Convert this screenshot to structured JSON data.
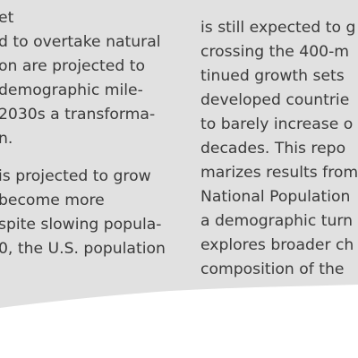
{
  "page": {
    "background": "#ffffff",
    "paper_color": "#e1e1e1",
    "text_color": "#3a3a3a"
  },
  "left_column": {
    "paragraph_1": [
      "et",
      "d to overtake natural",
      "on are projected to",
      "demographic mile-",
      "2030s a transforma-",
      "n."
    ],
    "paragraph_2": [
      " is projected to grow",
      " become more",
      "spite slowing popula-",
      "0, the U.S. population"
    ]
  },
  "right_column": {
    "lines": [
      "is still expected to g",
      "crossing the 400-m",
      "tinued growth sets",
      "developed countrie",
      "to barely increase o",
      "decades. This repo",
      "marizes results from",
      "National Population",
      "a demographic turn",
      "explores broader ch",
      "composition of the"
    ]
  }
}
